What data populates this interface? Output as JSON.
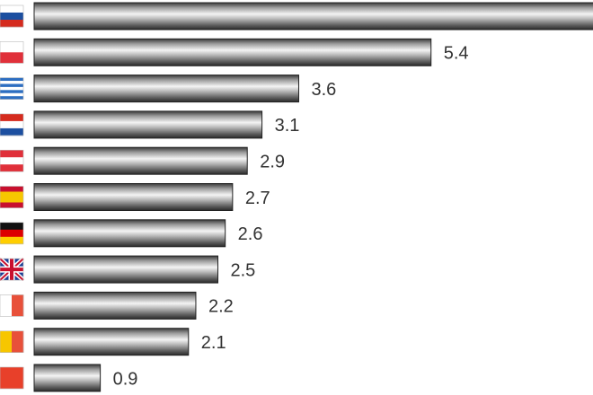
{
  "chart_data": {
    "type": "bar",
    "orientation": "horizontal",
    "categories": [
      null,
      null,
      null,
      null,
      null,
      null,
      null,
      null,
      null,
      null,
      null
    ],
    "values": [
      8.0,
      5.4,
      3.6,
      3.1,
      2.9,
      2.7,
      2.6,
      2.5,
      2.2,
      2.1,
      0.9
    ],
    "value_labels": [
      null,
      "5.4",
      "3.6",
      "3.1",
      "2.9",
      "2.7",
      "2.6",
      "2.5",
      "2.2",
      "2.1",
      "0.9"
    ],
    "color": "#8a8a8a"
  }
}
